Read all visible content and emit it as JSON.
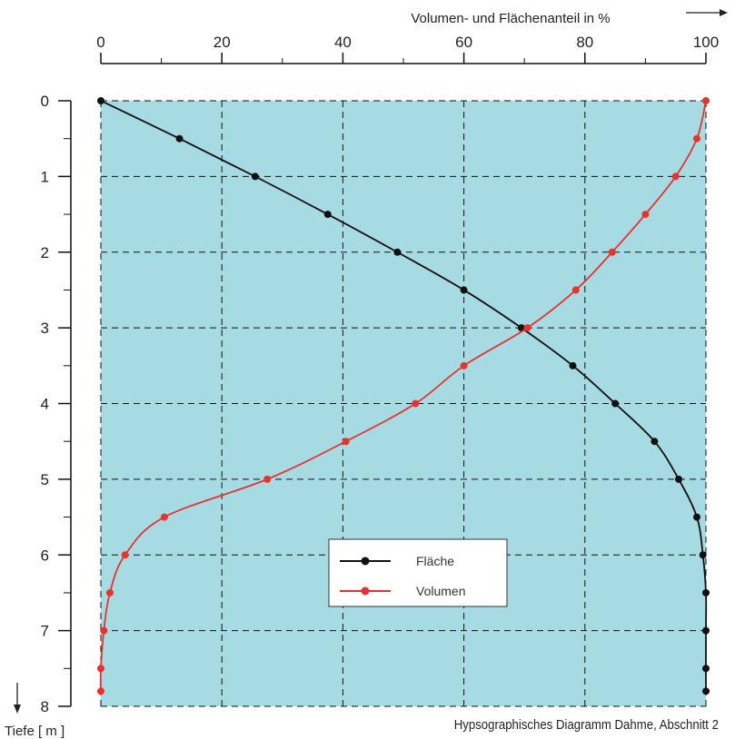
{
  "chart_data": {
    "type": "line",
    "xlabel": "Volumen- und Flächenanteil in %",
    "ylabel": "Tiefe [ m ]",
    "xlim": [
      0,
      100
    ],
    "ylim": [
      0,
      8
    ],
    "x_ticks": [
      "0",
      "20",
      "40",
      "60",
      "80",
      "100"
    ],
    "y_ticks": [
      "0",
      "1",
      "2",
      "3",
      "4",
      "5",
      "6",
      "7",
      "8"
    ],
    "y_inverted": true,
    "x_axis_position": "top",
    "grid": true,
    "background_color": "#a7dbe4",
    "legend_position": "lower-center",
    "series": [
      {
        "name": "Fläche",
        "color": "#111111",
        "points": [
          {
            "x": 0,
            "y": 0
          },
          {
            "x": 13,
            "y": 0.5
          },
          {
            "x": 25.5,
            "y": 1
          },
          {
            "x": 37.5,
            "y": 1.5
          },
          {
            "x": 49,
            "y": 2
          },
          {
            "x": 60,
            "y": 2.5
          },
          {
            "x": 69.5,
            "y": 3
          },
          {
            "x": 78,
            "y": 3.5
          },
          {
            "x": 85,
            "y": 4
          },
          {
            "x": 91.5,
            "y": 4.5
          },
          {
            "x": 95.5,
            "y": 5
          },
          {
            "x": 98.5,
            "y": 5.5
          },
          {
            "x": 99.5,
            "y": 6
          },
          {
            "x": 100,
            "y": 6.5
          },
          {
            "x": 100,
            "y": 7
          },
          {
            "x": 100,
            "y": 7.5
          },
          {
            "x": 100,
            "y": 7.8
          }
        ]
      },
      {
        "name": "Volumen",
        "color": "#e8322c",
        "points": [
          {
            "x": 100,
            "y": 0
          },
          {
            "x": 98.5,
            "y": 0.5
          },
          {
            "x": 95,
            "y": 1
          },
          {
            "x": 90,
            "y": 1.5
          },
          {
            "x": 84.5,
            "y": 2
          },
          {
            "x": 78.5,
            "y": 2.5
          },
          {
            "x": 70.5,
            "y": 3
          },
          {
            "x": 60,
            "y": 3.5
          },
          {
            "x": 52,
            "y": 4
          },
          {
            "x": 40.5,
            "y": 4.5
          },
          {
            "x": 27.5,
            "y": 5
          },
          {
            "x": 10.5,
            "y": 5.5
          },
          {
            "x": 4,
            "y": 6
          },
          {
            "x": 1.5,
            "y": 6.5
          },
          {
            "x": 0.5,
            "y": 7
          },
          {
            "x": 0,
            "y": 7.5
          },
          {
            "x": 0,
            "y": 7.8
          }
        ]
      }
    ]
  },
  "caption": "Hypsographisches Diagramm Dahme, Abschnitt 2"
}
